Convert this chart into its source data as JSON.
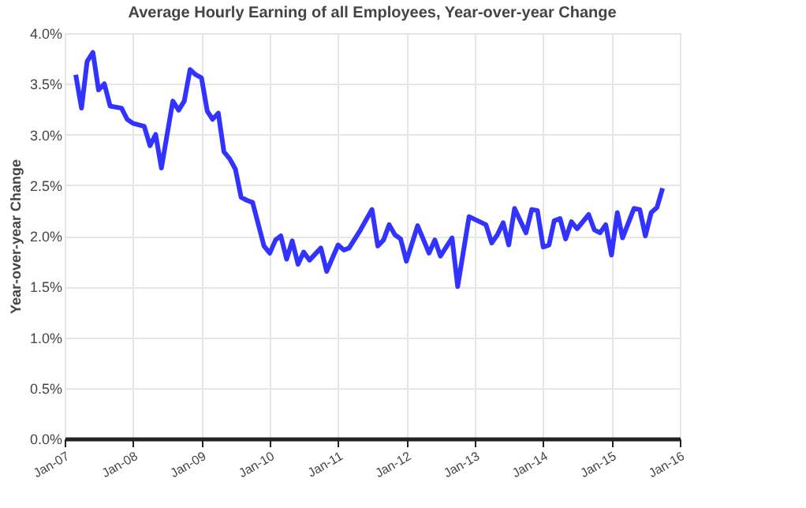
{
  "chart_data": {
    "type": "line",
    "title": "Average Hourly Earning of all Employees, Year-over-year Change",
    "ylabel": "Year-over-year Change",
    "x": [
      "2007-03",
      "2007-04",
      "2007-05",
      "2007-06",
      "2007-07",
      "2007-08",
      "2007-09",
      "2007-11",
      "2007-12",
      "2008-01",
      "2008-03",
      "2008-04",
      "2008-05",
      "2008-06",
      "2008-08",
      "2008-09",
      "2008-10",
      "2008-11",
      "2008-12",
      "2009-01",
      "2009-02",
      "2009-03",
      "2009-04",
      "2009-05",
      "2009-06",
      "2009-07",
      "2009-08",
      "2009-09",
      "2009-10",
      "2009-12",
      "2010-01",
      "2010-02",
      "2010-03",
      "2010-04",
      "2010-05",
      "2010-06",
      "2010-07",
      "2010-08",
      "2010-10",
      "2010-11",
      "2011-01",
      "2011-02",
      "2011-03",
      "2011-05",
      "2011-07",
      "2011-08",
      "2011-09",
      "2011-10",
      "2011-11",
      "2011-12",
      "2012-01",
      "2012-03",
      "2012-05",
      "2012-06",
      "2012-07",
      "2012-09",
      "2012-10",
      "2012-12",
      "2013-03",
      "2013-04",
      "2013-05",
      "2013-06",
      "2013-07",
      "2013-08",
      "2013-10",
      "2013-11",
      "2013-12",
      "2014-01",
      "2014-02",
      "2014-03",
      "2014-04",
      "2014-05",
      "2014-06",
      "2014-07",
      "2014-09",
      "2014-10",
      "2014-11",
      "2014-12",
      "2015-01",
      "2015-02",
      "2015-03",
      "2015-05",
      "2015-06",
      "2015-07",
      "2015-08",
      "2015-09",
      "2015-10"
    ],
    "series": [
      {
        "color": "#3333ff",
        "values": [
          3.59,
          3.26,
          3.72,
          3.81,
          3.44,
          3.5,
          3.28,
          3.26,
          3.15,
          3.11,
          3.08,
          2.89,
          3.0,
          2.67,
          3.33,
          3.24,
          3.33,
          3.64,
          3.59,
          3.56,
          3.23,
          3.15,
          3.21,
          2.83,
          2.76,
          2.66,
          2.38,
          2.35,
          2.33,
          1.9,
          1.83,
          1.96,
          2.0,
          1.77,
          1.95,
          1.72,
          1.84,
          1.76,
          1.88,
          1.65,
          1.91,
          1.86,
          1.88,
          2.06,
          2.26,
          1.9,
          1.96,
          2.11,
          2.01,
          1.97,
          1.75,
          2.1,
          1.83,
          1.96,
          1.8,
          1.98,
          1.5,
          2.19,
          2.11,
          1.93,
          2.01,
          2.13,
          1.91,
          2.27,
          2.03,
          2.26,
          2.25,
          1.89,
          1.91,
          2.15,
          2.17,
          1.97,
          2.14,
          2.07,
          2.21,
          2.06,
          2.03,
          2.11,
          1.81,
          2.23,
          1.98,
          2.27,
          2.26,
          2.0,
          2.23,
          2.28,
          2.47
        ]
      }
    ],
    "xlim": [
      "2007-01",
      "2016-01"
    ],
    "xticks": [
      {
        "value": "2007-01",
        "label": "Jan-07"
      },
      {
        "value": "2008-01",
        "label": "Jan-08"
      },
      {
        "value": "2009-01",
        "label": "Jan-09"
      },
      {
        "value": "2010-01",
        "label": "Jan-10"
      },
      {
        "value": "2011-01",
        "label": "Jan-11"
      },
      {
        "value": "2012-01",
        "label": "Jan-12"
      },
      {
        "value": "2013-01",
        "label": "Jan-13"
      },
      {
        "value": "2014-01",
        "label": "Jan-14"
      },
      {
        "value": "2015-01",
        "label": "Jan-15"
      },
      {
        "value": "2016-01",
        "label": "Jan-16"
      }
    ],
    "ylim": [
      0,
      4
    ],
    "yticks": [
      {
        "value": 0,
        "label": "0.0%"
      },
      {
        "value": 0.5,
        "label": "0.5%"
      },
      {
        "value": 1,
        "label": "1.0%"
      },
      {
        "value": 1.5,
        "label": "1.5%"
      },
      {
        "value": 2,
        "label": "2.0%"
      },
      {
        "value": 2.5,
        "label": "2.5%"
      },
      {
        "value": 3,
        "label": "3.0%"
      },
      {
        "value": 3.5,
        "label": "3.5%"
      },
      {
        "value": 4,
        "label": "4.0%"
      }
    ],
    "grid": true,
    "line_style": "solid",
    "marker": "none"
  }
}
